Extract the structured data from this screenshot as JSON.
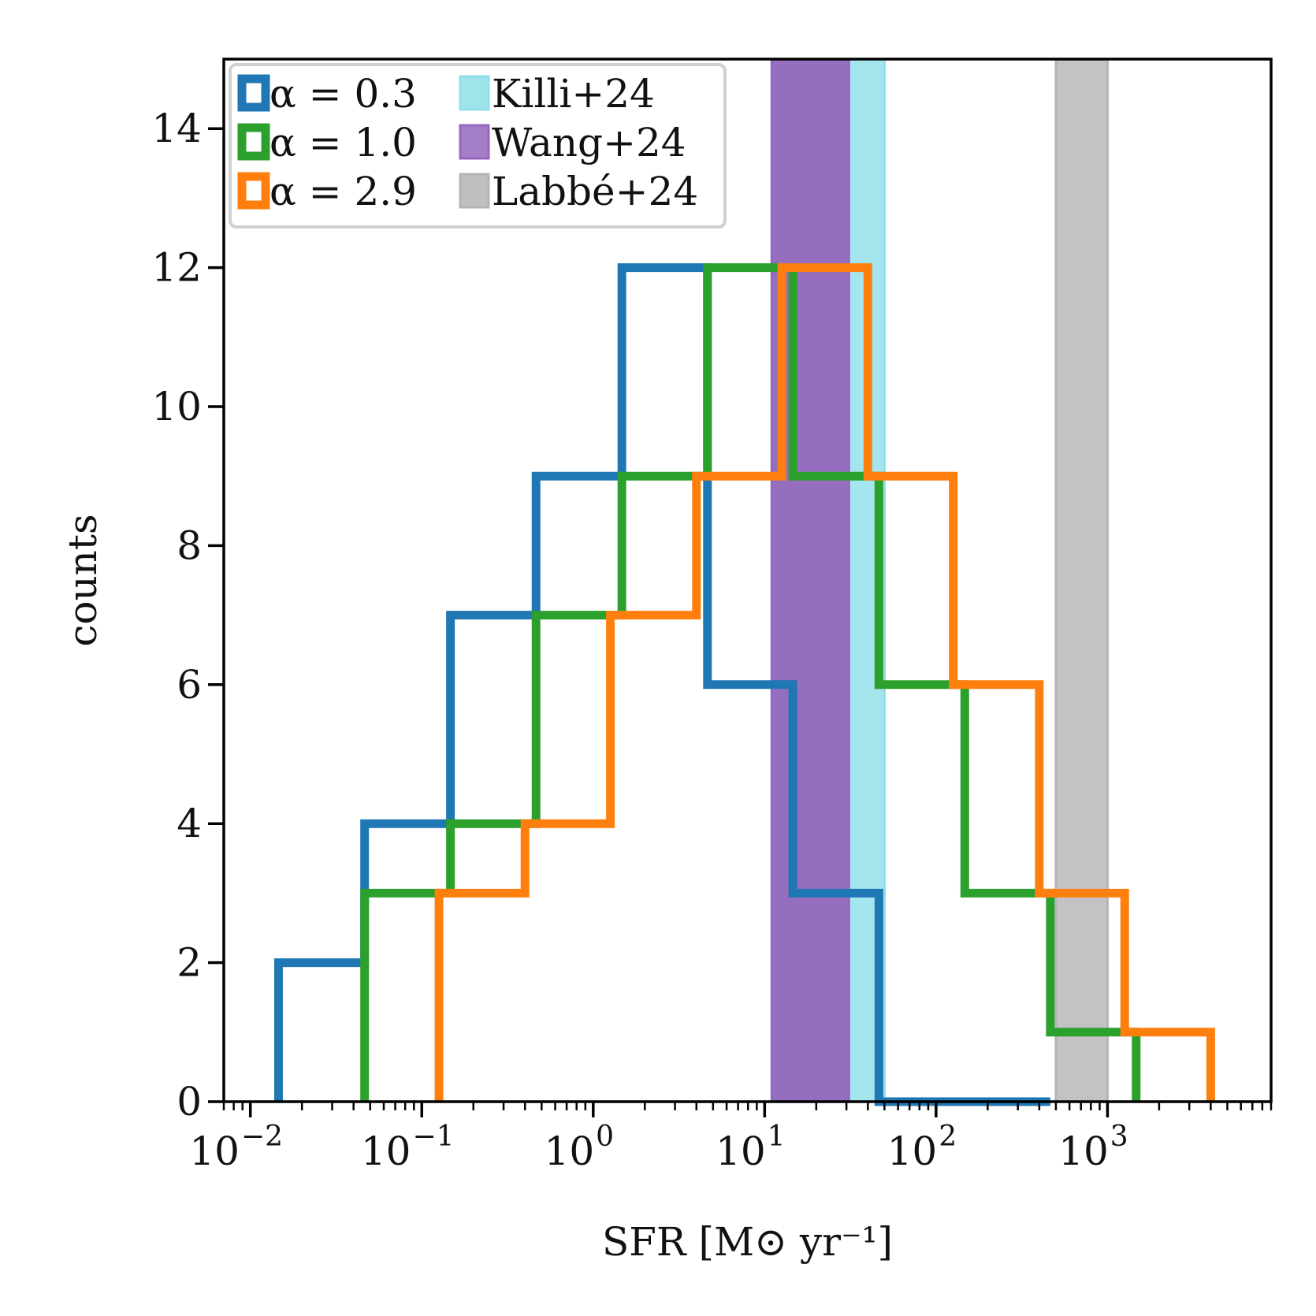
{
  "chart_data": {
    "type": "histogram",
    "xscale": "log",
    "xlabel": "SFR [M⊙ yr⁻¹]",
    "ylabel": "counts",
    "xlim": [
      0.007,
      9000
    ],
    "ylim": [
      0,
      15
    ],
    "x_ticks": [
      {
        "value": 0.01,
        "base": "10",
        "exp": "−2"
      },
      {
        "value": 0.1,
        "base": "10",
        "exp": "−1"
      },
      {
        "value": 1,
        "base": "10",
        "exp": "0"
      },
      {
        "value": 10,
        "base": "10",
        "exp": "1"
      },
      {
        "value": 100,
        "base": "10",
        "exp": "2"
      },
      {
        "value": 1000,
        "base": "10",
        "exp": "3"
      }
    ],
    "y_ticks": [
      0,
      2,
      4,
      6,
      8,
      10,
      12,
      14
    ],
    "bands": [
      {
        "name": "Killi+24",
        "x0": 11,
        "x1": 50,
        "color": "#8fdfe8"
      },
      {
        "name": "Wang+24",
        "x0": 11,
        "x1": 31,
        "color": "#9467bd"
      },
      {
        "name": "Labbé+24",
        "x0": 500,
        "x1": 1000,
        "color": "#b4b4b4"
      }
    ],
    "series": [
      {
        "name": "α = 0.3",
        "color": "#1f77b4",
        "edges": [
          0.0146,
          0.0464,
          0.147,
          0.464,
          1.47,
          4.64,
          14.6,
          46.4,
          147,
          464
        ],
        "counts": [
          2,
          4,
          7,
          9,
          12,
          6,
          3,
          0,
          0
        ]
      },
      {
        "name": "α = 1.0",
        "color": "#2ca02c",
        "edges": [
          0.0464,
          0.147,
          0.464,
          1.47,
          4.64,
          14.6,
          46.4,
          147,
          464,
          1470
        ],
        "counts": [
          3,
          4,
          7,
          9,
          12,
          9,
          6,
          3,
          1
        ]
      },
      {
        "name": "α = 2.9",
        "color": "#ff7f0e",
        "edges": [
          0.126,
          0.4,
          1.26,
          4.0,
          12.6,
          40,
          126,
          400,
          1260,
          4000
        ],
        "counts": [
          3,
          4,
          7,
          9,
          12,
          9,
          6,
          3,
          1
        ]
      }
    ]
  },
  "legend": {
    "items": [
      {
        "label": "α = 0.3",
        "color": "#1f77b4",
        "style": "outline"
      },
      {
        "label": "α = 1.0",
        "color": "#2ca02c",
        "style": "outline"
      },
      {
        "label": "α = 2.9",
        "color": "#ff7f0e",
        "style": "outline"
      },
      {
        "label": "Killi+24",
        "color": "#8fdfe8",
        "style": "fill"
      },
      {
        "label": "Wang+24",
        "color": "#9467bd",
        "style": "fill"
      },
      {
        "label": "Labbé+24",
        "color": "#b4b4b4",
        "style": "fill"
      }
    ]
  }
}
